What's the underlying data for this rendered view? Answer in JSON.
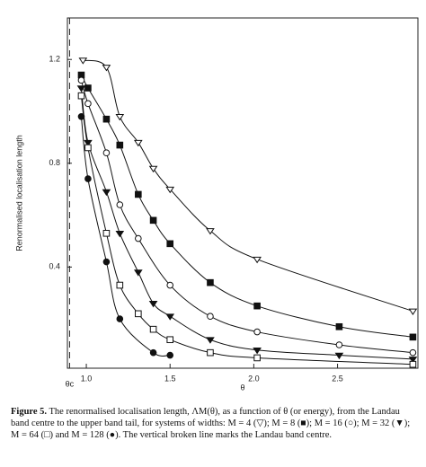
{
  "chart_data": {
    "type": "line",
    "xlabel": "θ",
    "ylabel": "Renormalised localisation length",
    "xlim": [
      0.887,
      2.98
    ],
    "ylim": [
      0.01,
      1.36
    ],
    "xticks": [
      {
        "value": 1,
        "label": "1.0"
      },
      1.5,
      {
        "value": 2,
        "label": "2.0"
      },
      2.5
    ],
    "yticks": [
      0.4,
      0.8,
      1.2
    ],
    "grid": false,
    "annotations": [
      {
        "text": "θc",
        "x": 0.9,
        "line": "dashed"
      }
    ],
    "series": [
      {
        "color": "#111",
        "marker": "triangle-down-open",
        "x": [
          0.98,
          1.12,
          1.2,
          1.31,
          1.4,
          1.5,
          1.74,
          2.02,
          2.95
        ],
        "values": [
          1.197,
          1.17,
          0.98,
          0.88,
          0.78,
          0.7,
          0.54,
          0.43,
          0.23
        ]
      },
      {
        "color": "#111",
        "marker": "square-filled",
        "x": [
          0.97,
          1.01,
          1.12,
          1.2,
          1.31,
          1.4,
          1.5,
          1.74,
          2.02,
          2.51,
          2.95
        ],
        "values": [
          1.14,
          1.09,
          0.97,
          0.87,
          0.68,
          0.58,
          0.49,
          0.34,
          0.25,
          0.17,
          0.13
        ]
      },
      {
        "color": "#111",
        "marker": "circle-open",
        "x": [
          0.97,
          1.01,
          1.12,
          1.2,
          1.31,
          1.5,
          1.74,
          2.02,
          2.51,
          2.95
        ],
        "values": [
          1.12,
          1.03,
          0.84,
          0.64,
          0.51,
          0.33,
          0.21,
          0.15,
          0.1,
          0.07
        ]
      },
      {
        "color": "#111",
        "marker": "triangle-down-filled",
        "x": [
          0.97,
          1.01,
          1.12,
          1.2,
          1.31,
          1.4,
          1.5,
          1.74,
          2.02,
          2.51,
          2.95
        ],
        "values": [
          1.09,
          0.88,
          0.69,
          0.53,
          0.38,
          0.26,
          0.21,
          0.12,
          0.08,
          0.06,
          0.045
        ]
      },
      {
        "color": "#111",
        "marker": "square-open",
        "x": [
          0.97,
          1.01,
          1.12,
          1.2,
          1.31,
          1.4,
          1.5,
          1.74,
          2.02,
          2.95
        ],
        "values": [
          1.06,
          0.86,
          0.53,
          0.33,
          0.22,
          0.16,
          0.12,
          0.07,
          0.05,
          0.025
        ]
      },
      {
        "color": "#111",
        "marker": "circle-filled",
        "x": [
          0.97,
          1.01,
          1.12,
          1.2,
          1.4,
          1.5
        ],
        "values": [
          0.98,
          0.74,
          0.42,
          0.2,
          0.07,
          0.06
        ]
      }
    ]
  },
  "caption": {
    "label": "Figure 5.",
    "text": "The renormalised localisation length, ΛM(θ), as a function of θ (or energy), from the Landau band centre to the upper band tail, for systems of widths: M = 4 (▽); M = 8 (■); M = 16 (○); M = 32 (▼); M = 64 (□) and M = 128 (●). The vertical broken line marks the Landau band centre."
  }
}
